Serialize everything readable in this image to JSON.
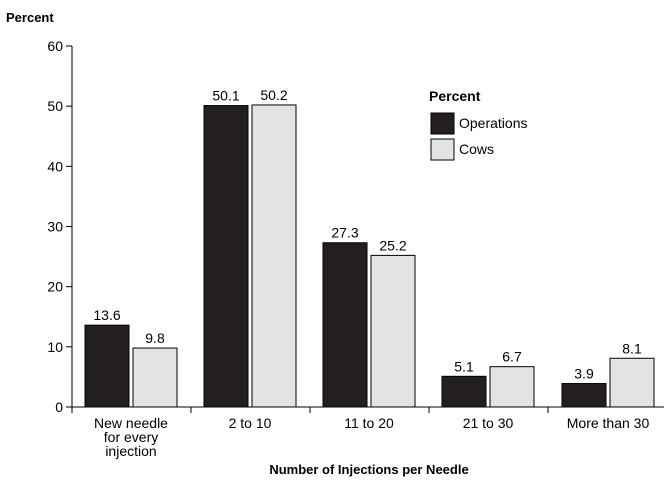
{
  "chart_data": {
    "type": "bar",
    "ylabel": "Percent",
    "xlabel": "Number of Injections per Needle",
    "ylim": [
      0,
      60
    ],
    "yticks": [
      0,
      10,
      20,
      30,
      40,
      50,
      60
    ],
    "grid": false,
    "legend": {
      "title": "Percent",
      "placement": "top-right"
    },
    "categories": [
      [
        "New needle",
        "for every",
        "injection"
      ],
      [
        "2 to 10"
      ],
      [
        "11 to 20"
      ],
      [
        "21 to 30"
      ],
      [
        "More than 30"
      ]
    ],
    "series": [
      {
        "name": "Operations",
        "color": "#231f20",
        "labels": [
          "13.6",
          "50.1",
          "27.3",
          "5.1",
          "3.9"
        ],
        "values": [
          13.6,
          50.1,
          27.3,
          5.1,
          3.9
        ]
      },
      {
        "name": "Cows",
        "color": "#e2e3e4",
        "labels": [
          "9.8",
          "50.2",
          "25.2",
          "6.7",
          "8.1"
        ],
        "values": [
          9.8,
          50.2,
          25.2,
          6.7,
          8.1
        ]
      }
    ]
  }
}
